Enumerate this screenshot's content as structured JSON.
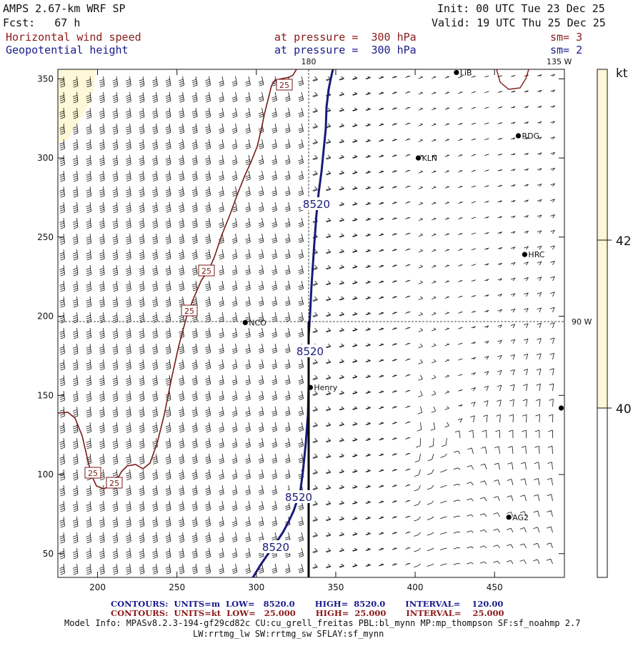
{
  "header": {
    "model": "AMPS 2.67-km WRF SP",
    "forecast": "Fcst:   67 h",
    "init": "Init: 00 UTC Tue 23 Dec 25",
    "valid": "Valid: 19 UTC Thu 25 Dec 25",
    "field1_name": "Horizontal wind speed",
    "field1_level": "at pressure =  300 hPa",
    "field1_sm": "sm= 3",
    "field2_name": "Geopotential height",
    "field2_level": "at pressure =  300 hPa",
    "field2_sm": "sm= 2"
  },
  "map": {
    "xticks": [
      "200",
      "250",
      "300",
      "350",
      "400",
      "450"
    ],
    "xtick_values": [
      200,
      250,
      300,
      350,
      400,
      450
    ],
    "yticks": [
      "50",
      "100",
      "150",
      "200",
      "250",
      "300",
      "350"
    ],
    "ytick_values": [
      50,
      100,
      150,
      200,
      250,
      300,
      350
    ],
    "x_range": [
      175,
      494
    ],
    "y_range": [
      35,
      356
    ],
    "meridian_label": "180",
    "meridian_value": 335,
    "meridian_135_label": "135 W",
    "parallel_label": "90 W",
    "parallel_value": 196,
    "stations": [
      {
        "name": "NCO",
        "x": 293,
        "y": 196
      },
      {
        "name": "KLN",
        "x": 402,
        "y": 300
      },
      {
        "name": "RDG",
        "x": 465,
        "y": 314
      },
      {
        "name": "HRC",
        "x": 469,
        "y": 239
      },
      {
        "name": "Henry",
        "x": 334,
        "y": 155
      },
      {
        "name": "AG2",
        "x": 459,
        "y": 73
      },
      {
        "name": "LiB",
        "x": 426,
        "y": 354
      },
      {
        "name": "",
        "x": 492,
        "y": 142
      }
    ],
    "height_contour_labels": [
      "8520",
      "8520",
      "8520",
      "8520"
    ],
    "speed_contour_labels": [
      "25",
      "25",
      "25",
      "25",
      "25"
    ],
    "colorbar": {
      "unit": "kt",
      "ticks": [
        "42",
        "40"
      ],
      "colors": {
        "low": "#ffffff",
        "high": "#fff8d8"
      }
    },
    "colors": {
      "height_contour": "#1a1a7a",
      "speed_contour": "#7a1a1a",
      "barb": "#111111",
      "speed_shade": "#fff8d8"
    }
  },
  "footer": {
    "contours_height": "CONTOURS:  UNITS=m  LOW=   8520.0       HIGH=  8520.0       INTERVAL=    120.00",
    "contours_speed": "CONTOURS:  UNITS=kt  LOW=   25.000       HIGH=  25.000       INTERVAL=    25.000",
    "model_info_1": "Model Info: MPASv8.2.3-194-gf29cd82c CU:cu_grell_freitas PBL:bl_mynn MP:mp_thompson SF:sf_noahmp 2.7",
    "model_info_2": "LW:rrtmg_lw SW:rrtmg_sw SFLAY:sf_mynn"
  }
}
